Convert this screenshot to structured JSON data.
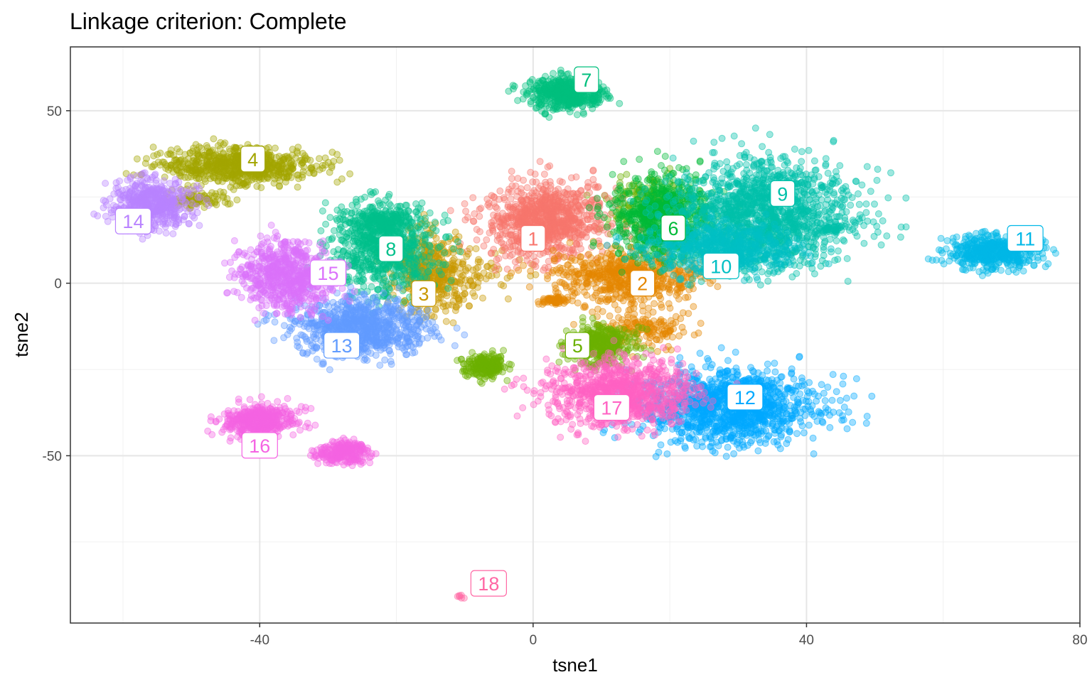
{
  "chart_data": {
    "type": "scatter",
    "title": "Linkage criterion: Complete",
    "xlabel": "tsne1",
    "ylabel": "tsne2",
    "xlim": [
      -67.7,
      80
    ],
    "ylim": [
      -98.5,
      68.5
    ],
    "x_ticks": [
      -40,
      0,
      40,
      80
    ],
    "y_ticks": [
      -50,
      0,
      50
    ],
    "x_tick_labels": [
      "-40",
      "0",
      "40",
      "80"
    ],
    "y_tick_labels": [
      "-50",
      "0",
      "50"
    ],
    "grid": true,
    "legend": "none",
    "clusters": [
      {
        "label": "1",
        "color": "#F8766D",
        "cx": 2,
        "cy": 18,
        "rx": 7.5,
        "ry": 9,
        "n": 900,
        "label_x": 0,
        "label_y": 13
      },
      {
        "label": "2",
        "color": "#E58700",
        "cx": 14,
        "cy": 2,
        "rx": 9,
        "ry": 6,
        "n": 600,
        "label_x": 16,
        "label_y": 0
      },
      {
        "label": "3",
        "color": "#C99800",
        "cx": -15,
        "cy": 3,
        "rx": 4.5,
        "ry": 10,
        "n": 450,
        "label_x": -16,
        "label_y": -3
      },
      {
        "label": "4",
        "color": "#A3A500",
        "cx": -43,
        "cy": 34,
        "rx": 9,
        "ry": 4.5,
        "n": 700,
        "label_x": -41,
        "label_y": 36
      },
      {
        "label": "5",
        "color": "#6BB100",
        "cx": 10,
        "cy": -18,
        "rx": 4,
        "ry": 5,
        "n": 350,
        "label_x": 6.5,
        "label_y": -18
      },
      {
        "label": "6",
        "color": "#00BA38",
        "cx": 19,
        "cy": 19,
        "rx": 6,
        "ry": 10,
        "n": 700,
        "label_x": 20.5,
        "label_y": 16
      },
      {
        "label": "7",
        "color": "#00BF7D",
        "cx": 5,
        "cy": 55,
        "rx": 4.5,
        "ry": 4,
        "n": 500,
        "label_x": 7.8,
        "label_y": 59
      },
      {
        "label": "8",
        "color": "#00C08B",
        "cx": -22,
        "cy": 10,
        "rx": 6,
        "ry": 11,
        "n": 700,
        "label_x": -20.8,
        "label_y": 10
      },
      {
        "label": "9",
        "color": "#00C1AA",
        "cx": 34,
        "cy": 20,
        "rx": 11,
        "ry": 13,
        "n": 1400,
        "label_x": 36.5,
        "label_y": 26
      },
      {
        "label": "10",
        "color": "#00BFC4",
        "cx": 28,
        "cy": 10,
        "rx": 9,
        "ry": 6,
        "n": 600,
        "label_x": 27.5,
        "label_y": 5
      },
      {
        "label": "11",
        "color": "#00B8E7",
        "cx": 67,
        "cy": 9,
        "rx": 5,
        "ry": 4,
        "n": 500,
        "label_x": 72,
        "label_y": 13
      },
      {
        "label": "12",
        "color": "#00A9FF",
        "cx": 29,
        "cy": -36,
        "rx": 11,
        "ry": 9,
        "n": 1200,
        "label_x": 31,
        "label_y": -33
      },
      {
        "label": "13",
        "color": "#619CFF",
        "cx": -25,
        "cy": -13,
        "rx": 8,
        "ry": 7,
        "n": 800,
        "label_x": -28,
        "label_y": -18
      },
      {
        "label": "14",
        "color": "#B983FF",
        "cx": -56,
        "cy": 23,
        "rx": 4.5,
        "ry": 6,
        "n": 500,
        "label_x": -58.5,
        "label_y": 18
      },
      {
        "label": "15",
        "color": "#DB72FB",
        "cx": -36,
        "cy": 2,
        "rx": 5.5,
        "ry": 8.5,
        "n": 650,
        "label_x": -30,
        "label_y": 3
      },
      {
        "label": "16",
        "color": "#F564E3",
        "cx": -40,
        "cy": -40,
        "rx": 4.5,
        "ry": 4,
        "n": 450,
        "label_x": -40,
        "label_y": -47
      },
      {
        "label": "17",
        "color": "#FF61C3",
        "cx": 13,
        "cy": -32,
        "rx": 9,
        "ry": 8,
        "n": 900,
        "label_x": 11.5,
        "label_y": -36
      },
      {
        "label": "18",
        "color": "#FF67A4",
        "cx": -10.5,
        "cy": -91,
        "rx": 0.4,
        "ry": 0.4,
        "n": 6,
        "label_x": -6.5,
        "label_y": -87
      }
    ],
    "extra_blobs": [
      {
        "color": "#6BB100",
        "cx": -7,
        "cy": -24,
        "rx": 2.5,
        "ry": 3,
        "n": 200
      },
      {
        "color": "#F564E3",
        "cx": -28,
        "cy": -49,
        "rx": 3,
        "ry": 2.5,
        "n": 250
      },
      {
        "color": "#E58700",
        "cx": 3,
        "cy": -5,
        "rx": 1.8,
        "ry": 1,
        "n": 60
      },
      {
        "color": "#E58700",
        "cx": 16,
        "cy": -13,
        "rx": 6,
        "ry": 5,
        "n": 160
      },
      {
        "color": "#C99800",
        "cx": -8,
        "cy": 3,
        "rx": 6,
        "ry": 5,
        "n": 50
      },
      {
        "color": "#A3A500",
        "cx": -49,
        "cy": 24,
        "rx": 4,
        "ry": 2,
        "n": 80
      },
      {
        "color": "#00C08B",
        "cx": -22,
        "cy": 18,
        "rx": 4,
        "ry": 3,
        "n": 200
      },
      {
        "color": "#6BB100",
        "cx": 17,
        "cy": 22,
        "rx": 5,
        "ry": 7,
        "n": 200
      },
      {
        "color": "#00C1AA",
        "cx": 44,
        "cy": 16,
        "rx": 1.5,
        "ry": 1,
        "n": 40
      }
    ]
  }
}
